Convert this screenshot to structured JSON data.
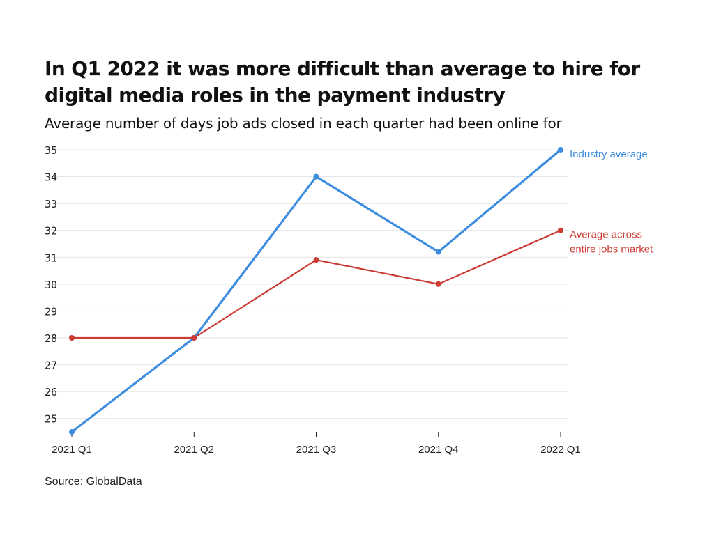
{
  "header": {
    "title": "In Q1 2022 it was more difficult than average to hire for digital media roles in the payment industry",
    "subtitle": "Average number of days job ads closed in each quarter had been online for"
  },
  "footer": {
    "source": "Source: GlobalData"
  },
  "chart_data": {
    "type": "line",
    "categories": [
      "2021 Q1",
      "2021 Q2",
      "2021 Q3",
      "2021 Q4",
      "2022 Q1"
    ],
    "ylim": [
      24.5,
      35
    ],
    "yticks": [
      25,
      26,
      27,
      28,
      29,
      30,
      31,
      32,
      33,
      34,
      35
    ],
    "grid": true,
    "legend": "inline-right",
    "series": [
      {
        "name": "Industry average",
        "label_lines": [
          "Industry average"
        ],
        "color": "#3c8ce0",
        "values": [
          24.5,
          28,
          34,
          31.2,
          35
        ]
      },
      {
        "name": "Average across entire jobs market",
        "label_lines": [
          "Average across",
          "entire jobs market"
        ],
        "color": "#cc3b33",
        "values": [
          28,
          28,
          30.9,
          30,
          32
        ]
      }
    ]
  }
}
